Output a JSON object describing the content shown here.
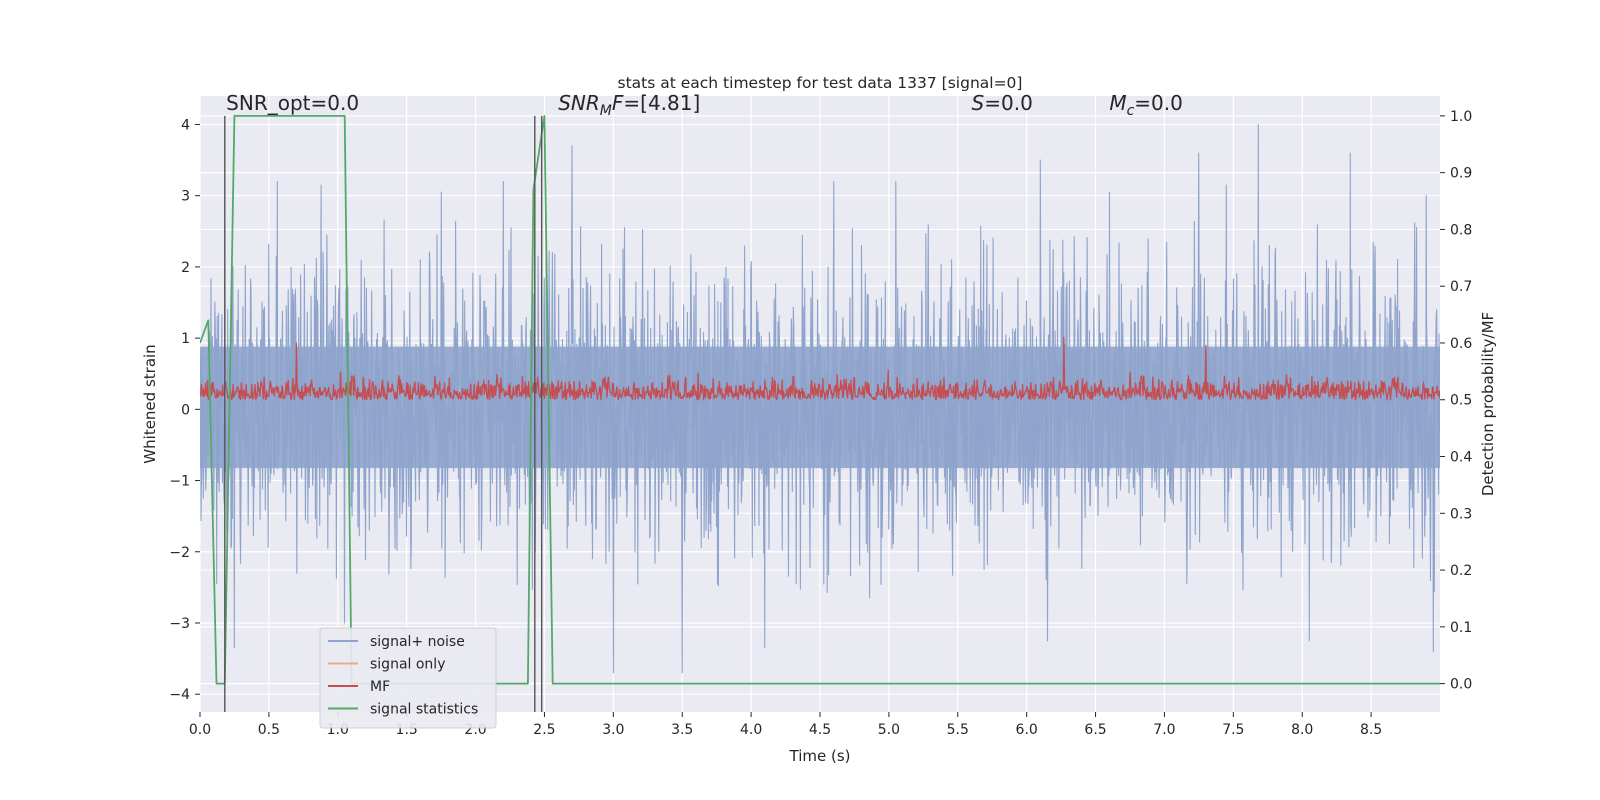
{
  "chart_data": {
    "type": "line",
    "title": "stats at each timestep for test data 1337 [signal=0]",
    "xlabel": "Time (s)",
    "ylabel_left": "Whitened strain",
    "ylabel_right": "Detection probability/MF",
    "xlim": [
      0.0,
      9.0
    ],
    "ylim_left": [
      -4.25,
      4.4
    ],
    "ylim_right": [
      -0.05,
      1.035
    ],
    "x_ticks": [
      0.0,
      0.5,
      1.0,
      1.5,
      2.0,
      2.5,
      3.0,
      3.5,
      4.0,
      4.5,
      5.0,
      5.5,
      6.0,
      6.5,
      7.0,
      7.5,
      8.0,
      8.5
    ],
    "x_tick_labels": [
      "0.0",
      "0.5",
      "1.0",
      "1.5",
      "2.0",
      "2.5",
      "3.0",
      "3.5",
      "4.0",
      "4.5",
      "5.0",
      "5.5",
      "6.0",
      "6.5",
      "7.0",
      "7.5",
      "8.0",
      "8.5"
    ],
    "y_ticks_left": [
      -4,
      -3,
      -2,
      -1,
      0,
      1,
      2,
      3,
      4
    ],
    "y_tick_labels_left": [
      "−4",
      "−3",
      "−2",
      "−1",
      "0",
      "1",
      "2",
      "3",
      "4"
    ],
    "y_ticks_right": [
      0.0,
      0.1,
      0.2,
      0.3,
      0.4,
      0.5,
      0.6,
      0.7,
      0.8,
      0.9,
      1.0
    ],
    "y_tick_labels_right": [
      "0.0",
      "0.1",
      "0.2",
      "0.3",
      "0.4",
      "0.5",
      "0.6",
      "0.7",
      "0.8",
      "0.9",
      "1.0"
    ],
    "grid": true,
    "legend_placement": "lower-left",
    "annotations": [
      {
        "parts": [
          {
            "text": "SNR_opt=0.0",
            "italic": false
          }
        ],
        "x": 0.19,
        "y": 4.2
      },
      {
        "parts": [
          {
            "text": "SNR",
            "italic": true
          },
          {
            "text": "M",
            "italic": true,
            "sub": true
          },
          {
            "text": "F",
            "italic": true
          },
          {
            "text": "=[4.81]",
            "italic": false
          }
        ],
        "x": 2.6,
        "y": 4.2
      },
      {
        "parts": [
          {
            "text": "S",
            "italic": true
          },
          {
            "text": "=0.0",
            "italic": false
          }
        ],
        "x": 5.6,
        "y": 4.2
      },
      {
        "parts": [
          {
            "text": "M",
            "italic": true
          },
          {
            "text": "c",
            "italic": true,
            "sub": true
          },
          {
            "text": "=0.0",
            "italic": false
          }
        ],
        "x": 6.6,
        "y": 4.2
      }
    ],
    "vertical_markers": [
      0.18,
      2.43,
      2.48
    ],
    "series": [
      {
        "name": "signal+ noise",
        "axis": "left",
        "color": "#8fa4cc",
        "style": "dense noise",
        "x_range": [
          0.0,
          9.0
        ],
        "band": {
          "low": -1.5,
          "high": 1.6
        },
        "peak_range": {
          "low": -3.7,
          "high": 4.0
        },
        "peaks": [
          {
            "x": 0.18,
            "y": 3.0
          },
          {
            "x": 0.12,
            "y": -2.45
          },
          {
            "x": 0.25,
            "y": -3.35
          },
          {
            "x": 0.56,
            "y": 3.2
          },
          {
            "x": 0.88,
            "y": 3.15
          },
          {
            "x": 1.05,
            "y": -3.0
          },
          {
            "x": 1.75,
            "y": 3.05
          },
          {
            "x": 2.2,
            "y": 3.2
          },
          {
            "x": 2.7,
            "y": 3.7
          },
          {
            "x": 3.0,
            "y": -3.85
          },
          {
            "x": 3.5,
            "y": -3.8
          },
          {
            "x": 4.1,
            "y": -3.35
          },
          {
            "x": 4.6,
            "y": 3.2
          },
          {
            "x": 5.05,
            "y": 3.2
          },
          {
            "x": 6.1,
            "y": 3.5
          },
          {
            "x": 6.15,
            "y": -3.25
          },
          {
            "x": 6.6,
            "y": 3.05
          },
          {
            "x": 7.25,
            "y": 3.6
          },
          {
            "x": 7.45,
            "y": 3.15
          },
          {
            "x": 7.68,
            "y": 4.0
          },
          {
            "x": 8.05,
            "y": -3.25
          },
          {
            "x": 8.35,
            "y": 3.6
          },
          {
            "x": 8.95,
            "y": -3.4
          },
          {
            "x": 8.9,
            "y": 3.0
          }
        ]
      },
      {
        "name": "signal only",
        "axis": "left",
        "color": "#f0a88a",
        "style": "line",
        "points": []
      },
      {
        "name": "MF",
        "axis": "right",
        "color": "#c44e52",
        "style": "noise",
        "x_range": [
          0.0,
          9.0
        ],
        "band": {
          "low": 0.5,
          "high": 0.55
        },
        "peak_range": {
          "low": 0.49,
          "high": 0.61
        },
        "peaks": [
          {
            "x": 6.27,
            "y": 0.61
          },
          {
            "x": 0.7,
            "y": 0.6
          },
          {
            "x": 7.3,
            "y": 0.595
          }
        ]
      },
      {
        "name": "signal statistics",
        "axis": "right",
        "color": "#55a868",
        "style": "line",
        "points": [
          [
            0.0,
            0.6
          ],
          [
            0.06,
            0.64
          ],
          [
            0.12,
            0.0
          ],
          [
            0.18,
            0.0
          ],
          [
            0.25,
            1.0
          ],
          [
            0.3,
            1.0
          ],
          [
            1.05,
            1.0
          ],
          [
            1.1,
            0.0
          ],
          [
            2.38,
            0.0
          ],
          [
            2.42,
            0.87
          ],
          [
            2.5,
            1.0
          ],
          [
            2.56,
            0.0
          ],
          [
            9.0,
            0.0
          ]
        ]
      }
    ]
  }
}
